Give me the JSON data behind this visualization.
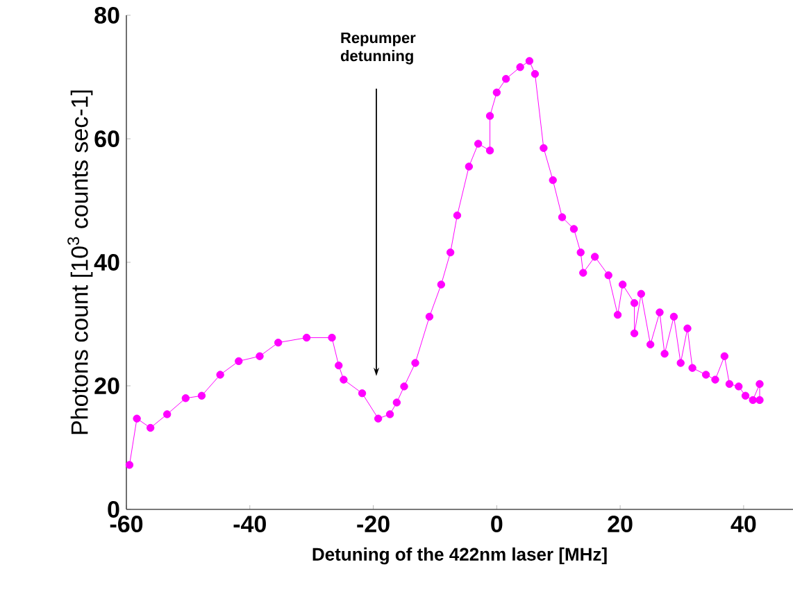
{
  "chart_data": {
    "type": "line",
    "xlabel": "Detuning of the 422nm laser [MHz]",
    "ylabel": "Photons count [10$^{3}$ counts sec-1]",
    "xlim": [
      -60,
      48
    ],
    "ylim": [
      0,
      80
    ],
    "xticks": [
      -60,
      -40,
      -20,
      0,
      20,
      40
    ],
    "yticks": [
      0,
      20,
      40,
      60,
      80
    ],
    "marker": "circle",
    "line_style": "solid",
    "grid": false,
    "legend": false,
    "annotations": [
      "Repumper detunning"
    ],
    "series": [
      {
        "color": "#ff00ff",
        "x": [
          -59.5,
          -58.3,
          -56.1,
          -53.4,
          -50.4,
          -47.8,
          -44.8,
          -41.8,
          -38.4,
          -35.4,
          -30.8,
          -26.7,
          -25.6,
          -24.8,
          -21.8,
          -19.2,
          -17.3,
          -16.2,
          -15.0,
          -13.2,
          -10.9,
          -9.0,
          -7.5,
          -6.4,
          -4.5,
          -3.0,
          -1.1,
          -1.1,
          0.0,
          1.5,
          3.8,
          5.3,
          6.2,
          7.6,
          9.1,
          10.6,
          12.5,
          13.6,
          14.0,
          15.9,
          18.1,
          19.6,
          20.4,
          22.3,
          22.3,
          23.4,
          24.9,
          26.4,
          27.2,
          28.7,
          29.8,
          30.9,
          31.7,
          33.9,
          35.4,
          36.9,
          37.7,
          39.2,
          40.3,
          41.5,
          42.6,
          42.6
        ],
        "values": [
          7.2,
          14.7,
          13.2,
          15.4,
          18.0,
          18.4,
          21.8,
          24.0,
          24.8,
          27.0,
          27.8,
          27.8,
          23.3,
          21.0,
          18.8,
          14.7,
          15.4,
          17.3,
          19.9,
          23.7,
          31.2,
          36.4,
          41.6,
          47.6,
          55.5,
          59.2,
          58.1,
          63.7,
          67.5,
          69.7,
          71.6,
          72.6,
          70.5,
          58.5,
          53.3,
          47.3,
          45.4,
          41.6,
          38.3,
          40.9,
          37.9,
          31.5,
          36.4,
          33.4,
          28.5,
          34.9,
          26.7,
          31.9,
          25.2,
          31.2,
          23.7,
          29.3,
          22.9,
          21.8,
          21.0,
          24.8,
          20.3,
          19.9,
          18.4,
          17.7,
          20.3,
          17.7
        ]
      }
    ]
  }
}
